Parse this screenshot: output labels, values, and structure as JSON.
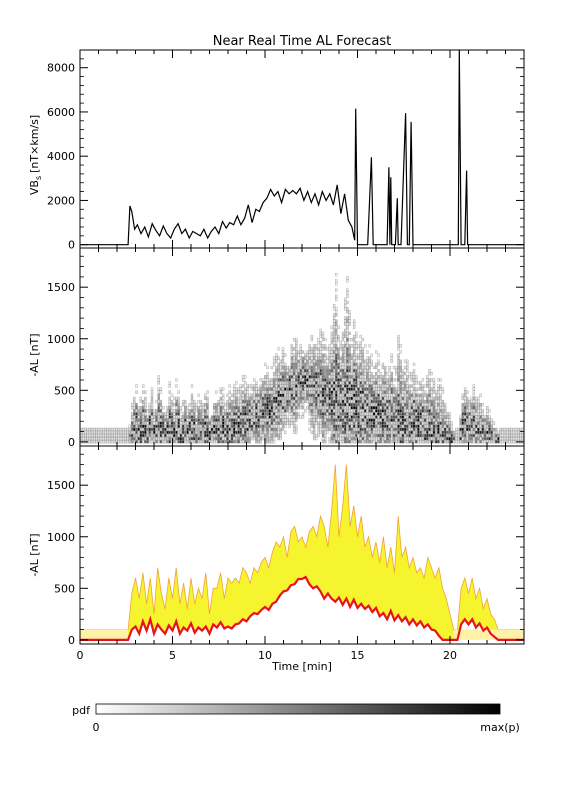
{
  "figure_title": "Near Real Time AL Forecast",
  "colorbar": {
    "label": "pdf",
    "min_label": "0",
    "max_label": "max(p)"
  },
  "colors": {
    "ink": "#000000",
    "band_fill": "#f5f218",
    "band_edge": "#f0a23a",
    "median_line": "#e8131a",
    "pale_band": "#fff2a8"
  },
  "chart_data": [
    {
      "type": "line",
      "panel": "top",
      "title": "Near Real Time AL Forecast",
      "ylabel": "VB",
      "ylabel_sub": "s",
      "ylabel_unit": "[nT×km/s]",
      "xlim": [
        0,
        24
      ],
      "ylim": [
        -150,
        8800
      ],
      "yticks": [
        0,
        2000,
        4000,
        6000,
        8000
      ],
      "grid": false,
      "series": [
        {
          "x": [
            0,
            2.6,
            2.7,
            2.8,
            2.95,
            3.1,
            3.3,
            3.5,
            3.7,
            3.9,
            4.1,
            4.3,
            4.5,
            4.7,
            4.9,
            5.1,
            5.3,
            5.5,
            5.7,
            5.9,
            6.1,
            6.3,
            6.5,
            6.7,
            6.9,
            7.1,
            7.3,
            7.5,
            7.7,
            7.9,
            8.1,
            8.3,
            8.5,
            8.7,
            8.9,
            9.1,
            9.3,
            9.5,
            9.7,
            9.9,
            10.1,
            10.3,
            10.5,
            10.7,
            10.9,
            11.1,
            11.3,
            11.5,
            11.7,
            11.9,
            12.1,
            12.3,
            12.5,
            12.7,
            12.9,
            13.1,
            13.3,
            13.5,
            13.7,
            13.9,
            14.1,
            14.3,
            14.5,
            14.7,
            14.85,
            14.9,
            15.0,
            15.1,
            15.3,
            15.55,
            15.75,
            15.85,
            15.95,
            16.6,
            16.7,
            16.75,
            16.8,
            16.85,
            16.95,
            17.05,
            17.15,
            17.2,
            17.25,
            17.35,
            17.6,
            17.7,
            17.75,
            17.8,
            17.9,
            18.0,
            18.05,
            18.1,
            18.2,
            20.4,
            20.45,
            20.5,
            20.55,
            20.6,
            20.7,
            20.8,
            20.9,
            20.95,
            21.0,
            21.1,
            24
          ],
          "y": [
            0,
            0,
            1750,
            1500,
            700,
            900,
            500,
            800,
            350,
            950,
            650,
            400,
            850,
            500,
            300,
            700,
            950,
            500,
            700,
            300,
            600,
            500,
            400,
            700,
            300,
            600,
            800,
            500,
            1050,
            750,
            1000,
            900,
            1300,
            900,
            1200,
            1800,
            1000,
            1600,
            1500,
            1900,
            2100,
            2500,
            2200,
            2400,
            1900,
            2500,
            2300,
            2450,
            2300,
            2550,
            2000,
            2400,
            1900,
            2300,
            1800,
            2400,
            2000,
            2300,
            1800,
            2700,
            1400,
            2300,
            1100,
            800,
            200,
            6150,
            0,
            0,
            0,
            0,
            3950,
            0,
            0,
            0,
            3500,
            0,
            3050,
            0,
            0,
            0,
            2100,
            0,
            0,
            0,
            5950,
            0,
            0,
            0,
            5550,
            0,
            0,
            0,
            0,
            0,
            0,
            8800,
            4400,
            0,
            0,
            0,
            3350,
            0,
            0,
            0,
            0
          ]
        }
      ]
    },
    {
      "type": "heatmap",
      "panel": "middle",
      "ylabel": "-AL [nT]",
      "xlim": [
        0,
        24
      ],
      "ylim": [
        -40,
        1880
      ],
      "yticks": [
        0,
        500,
        1000,
        1500
      ],
      "grid": false,
      "colorbar": "pdf 0 to max(p)"
    },
    {
      "type": "area",
      "panel": "bottom",
      "ylabel": "-AL [nT]",
      "xlabel": "Time [min]",
      "xlim": [
        0,
        24
      ],
      "ylim": [
        -40,
        1880
      ],
      "xticks": [
        0,
        5,
        10,
        15,
        20
      ],
      "yticks": [
        0,
        500,
        1000,
        1500
      ],
      "grid": false,
      "series": [
        {
          "name": "median",
          "x": [
            0,
            2.6,
            2.8,
            3.0,
            3.2,
            3.4,
            3.6,
            3.8,
            4.0,
            4.2,
            4.4,
            4.6,
            4.8,
            5.0,
            5.2,
            5.4,
            5.6,
            5.8,
            6.0,
            6.2,
            6.4,
            6.6,
            6.8,
            7.0,
            7.2,
            7.4,
            7.6,
            7.8,
            8.0,
            8.2,
            8.4,
            8.6,
            8.8,
            9.0,
            9.2,
            9.4,
            9.6,
            9.8,
            10.0,
            10.2,
            10.4,
            10.6,
            10.8,
            11.0,
            11.2,
            11.4,
            11.6,
            11.8,
            12.0,
            12.2,
            12.4,
            12.6,
            12.8,
            13.0,
            13.2,
            13.4,
            13.6,
            13.8,
            14.0,
            14.2,
            14.4,
            14.6,
            14.8,
            15.0,
            15.2,
            15.4,
            15.6,
            15.8,
            16.0,
            16.2,
            16.4,
            16.6,
            16.8,
            17.0,
            17.2,
            17.4,
            17.6,
            17.8,
            18.0,
            18.2,
            18.4,
            18.6,
            18.8,
            19.0,
            19.2,
            19.4,
            19.6,
            19.8,
            20.2,
            20.4,
            20.6,
            20.8,
            21.0,
            21.2,
            21.4,
            21.6,
            21.8,
            22.0,
            22.2,
            22.4,
            22.6,
            24
          ],
          "y": [
            0,
            0,
            100,
            130,
            60,
            180,
            90,
            200,
            60,
            150,
            100,
            60,
            140,
            90,
            180,
            60,
            120,
            90,
            160,
            70,
            120,
            90,
            130,
            60,
            150,
            120,
            170,
            110,
            130,
            110,
            150,
            160,
            200,
            180,
            230,
            260,
            250,
            290,
            320,
            290,
            350,
            370,
            430,
            470,
            480,
            530,
            540,
            590,
            590,
            610,
            540,
            500,
            520,
            470,
            400,
            450,
            400,
            370,
            410,
            340,
            400,
            320,
            390,
            310,
            350,
            300,
            330,
            270,
            310,
            230,
            260,
            200,
            280,
            190,
            240,
            180,
            220,
            150,
            200,
            140,
            180,
            120,
            150,
            100,
            90,
            40,
            0,
            0,
            0,
            0,
            150,
            200,
            150,
            200,
            120,
            160,
            90,
            120,
            60,
            30,
            0,
            0
          ]
        },
        {
          "name": "upper",
          "x": [
            0,
            2.6,
            2.8,
            3.0,
            3.2,
            3.4,
            3.6,
            3.8,
            4.0,
            4.2,
            4.4,
            4.6,
            4.8,
            5.0,
            5.2,
            5.4,
            5.6,
            5.8,
            6.0,
            6.2,
            6.4,
            6.6,
            6.8,
            7.0,
            7.2,
            7.4,
            7.6,
            7.8,
            8.0,
            8.2,
            8.4,
            8.6,
            8.8,
            9.0,
            9.2,
            9.4,
            9.6,
            9.8,
            10.0,
            10.2,
            10.4,
            10.6,
            10.8,
            11.0,
            11.2,
            11.4,
            11.6,
            11.8,
            12.0,
            12.2,
            12.4,
            12.6,
            12.8,
            13.0,
            13.2,
            13.4,
            13.6,
            13.8,
            14.0,
            14.2,
            14.4,
            14.6,
            14.8,
            15.0,
            15.2,
            15.4,
            15.6,
            15.8,
            16.0,
            16.2,
            16.4,
            16.6,
            16.8,
            17.0,
            17.2,
            17.4,
            17.6,
            17.8,
            18.0,
            18.2,
            18.4,
            18.6,
            18.8,
            19.0,
            19.2,
            19.4,
            19.6,
            19.8,
            20.2,
            20.4,
            20.6,
            20.8,
            21.0,
            21.2,
            21.4,
            21.6,
            21.8,
            22.0,
            22.2,
            22.4,
            22.6,
            24
          ],
          "y": [
            100,
            100,
            450,
            600,
            400,
            650,
            350,
            600,
            250,
            700,
            450,
            300,
            600,
            400,
            700,
            350,
            550,
            300,
            600,
            350,
            500,
            400,
            650,
            250,
            500,
            500,
            650,
            400,
            600,
            550,
            600,
            550,
            700,
            650,
            550,
            700,
            650,
            750,
            800,
            700,
            850,
            950,
            900,
            1000,
            800,
            1050,
            1100,
            950,
            1000,
            900,
            1050,
            1100,
            1000,
            1200,
            1100,
            900,
            1250,
            1700,
            1000,
            1300,
            1700,
            1100,
            1300,
            1000,
            1200,
            900,
            1000,
            800,
            950,
            750,
            1000,
            700,
            900,
            650,
            1200,
            800,
            900,
            700,
            800,
            650,
            700,
            600,
            800,
            700,
            600,
            700,
            500,
            400,
            100,
            100,
            500,
            600,
            450,
            600,
            400,
            500,
            300,
            400,
            250,
            200,
            100,
            100
          ]
        }
      ]
    }
  ]
}
